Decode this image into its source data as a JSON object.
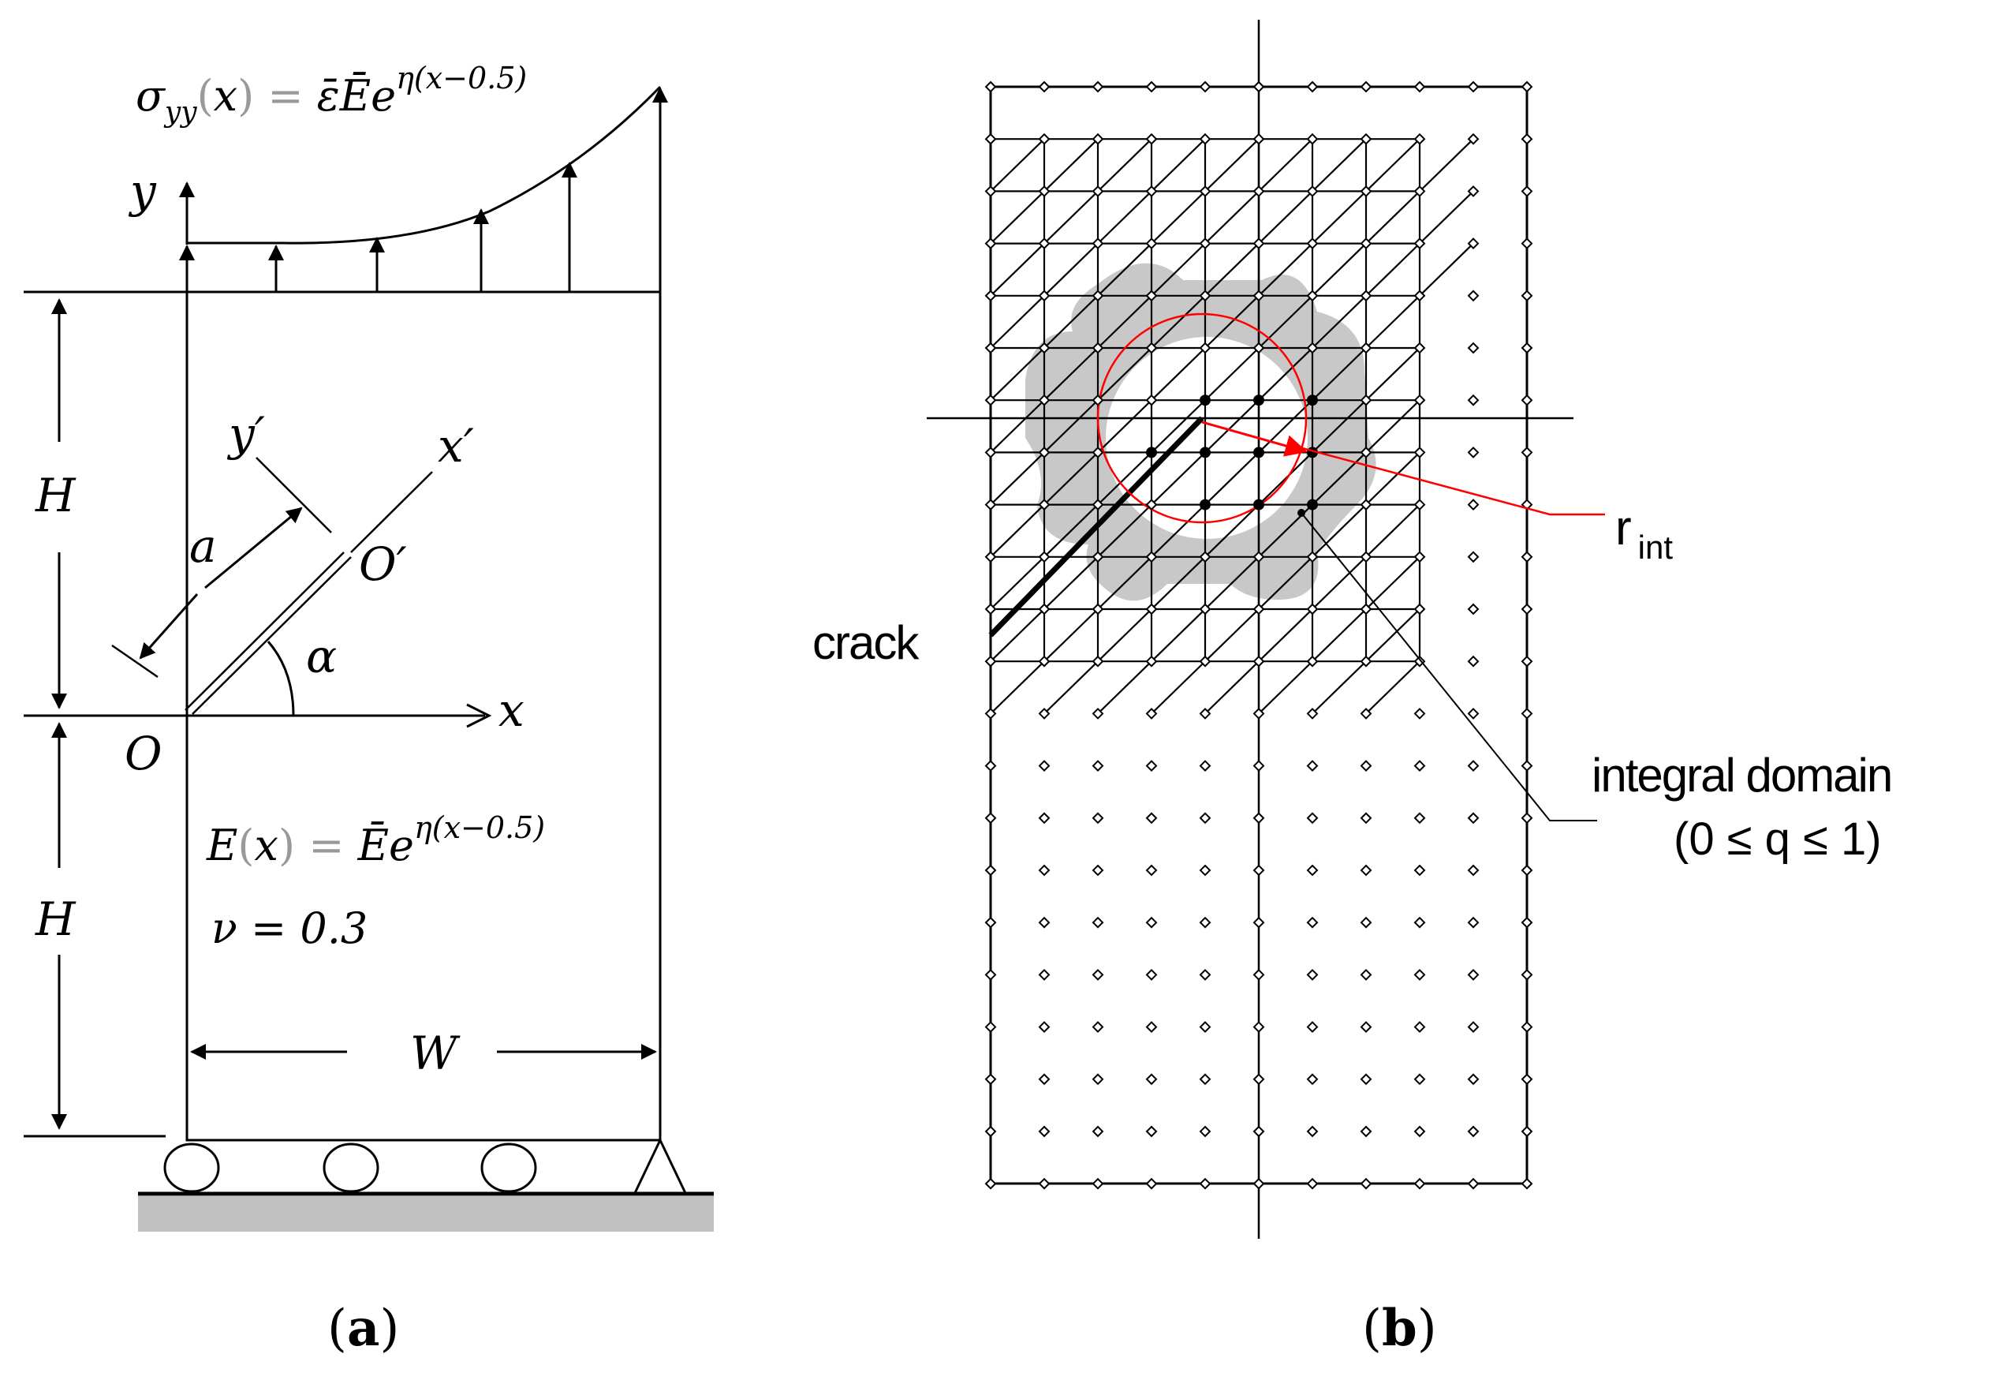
{
  "panel_a": {
    "caption_open": "(",
    "caption_letter": "a",
    "caption_close": ")",
    "load_sigma": "σ",
    "load_sub": "yy",
    "load_rest_1": "(",
    "load_x": "x",
    "load_rest_2": ") = ",
    "load_rhs": "ε̄Ē",
    "load_e": "e",
    "load_exp": "η(x−0.5)",
    "axis_y": "y",
    "axis_x": "x",
    "axis_y_prime": "y′",
    "axis_x_prime": "x′",
    "origin": "O",
    "origin_prime": "O′",
    "crack_length": "a",
    "angle": "α",
    "height_top": "H",
    "height_bottom": "H",
    "width": "W",
    "modulus_E": "E",
    "modulus_open": "(",
    "modulus_x": "x",
    "modulus_close_eq": ") = ",
    "modulus_rhs": "Ēe",
    "modulus_exp": "η(x−0.5)",
    "poisson": "ν = 0.3"
  },
  "panel_b": {
    "caption_open": "(",
    "caption_letter": "b",
    "caption_close": ")",
    "crack_label": "crack",
    "r_label": "r",
    "r_sub": "int",
    "domain_label_1": "integral domain",
    "domain_label_2": "(0 ≤ q ≤ 1)"
  },
  "colors": {
    "line": "#000000",
    "accent": "#ff0000",
    "domain_fill": "#c8c8c8",
    "ground": "#c0c0c0"
  }
}
